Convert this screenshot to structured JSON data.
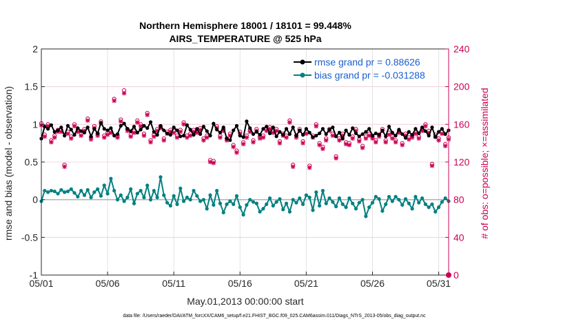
{
  "chart_data": {
    "type": "line",
    "title": [
      "Northern Hemisphere 18001 / 18101 = 99.448%",
      "AIRS_TEMPERATURE @ 525 hPa"
    ],
    "xlabel": "May.01,2013 00:00:00 start",
    "ylabel_left": "rmse and bias (model - observation)",
    "ylabel_right": "# of obs: o=possible; ×=assimilated",
    "footnote": "data file: /Users/raeder/DAI/ATM_forcXX/CAM6_setup/f.e21.FHIST_BGC.f09_025.CAM6assim.011/Diags_NTrS_2013-05/obs_diag_output.nc",
    "xlim": [
      1,
      31.75
    ],
    "ylim_left": [
      -1,
      2
    ],
    "ylim_right": [
      0,
      240
    ],
    "x_ticks": [
      1,
      6,
      11,
      16,
      21,
      26,
      31
    ],
    "x_tick_labels": [
      "05/01",
      "05/06",
      "05/11",
      "05/16",
      "05/21",
      "05/26",
      "05/31"
    ],
    "y_ticks_left": [
      -1,
      -0.5,
      0,
      0.5,
      1,
      1.5,
      2
    ],
    "y_tick_labels_left": [
      "-1",
      "-0.5",
      "0",
      "0.5",
      "1",
      "1.5",
      "2"
    ],
    "y_ticks_right": [
      0,
      40,
      80,
      120,
      160,
      200,
      240
    ],
    "y_tick_labels_right": [
      "0",
      "40",
      "80",
      "120",
      "160",
      "200",
      "240"
    ],
    "grid": true,
    "legend_position": "top-right",
    "x_step": 0.25,
    "series": [
      {
        "name": "rmse grand pr = 0.88626",
        "color": "#000000",
        "axis": "left",
        "values": [
          0.81,
          0.97,
          0.94,
          0.99,
          0.9,
          0.92,
          0.96,
          0.85,
          0.98,
          0.93,
          0.86,
          0.95,
          0.91,
          0.89,
          0.96,
          0.84,
          0.94,
          0.88,
          1.02,
          0.94,
          0.92,
          0.95,
          0.85,
          0.87,
          0.98,
          1.01,
          0.94,
          0.91,
          0.97,
          0.89,
          0.93,
          0.98,
          0.95,
          1.03,
          0.9,
          0.86,
          0.98,
          0.92,
          0.88,
          0.86,
          0.96,
          0.92,
          0.84,
          0.85,
          0.99,
          0.93,
          0.86,
          0.94,
          0.87,
          0.97,
          0.91,
          0.85,
          1.01,
          0.93,
          0.89,
          0.96,
          0.81,
          0.79,
          0.92,
          0.98,
          0.85,
          0.83,
          1.04,
          0.95,
          0.87,
          0.9,
          0.86,
          0.94,
          0.97,
          0.88,
          0.96,
          0.84,
          0.9,
          0.86,
          0.94,
          0.87,
          0.96,
          0.85,
          0.92,
          0.86,
          0.94,
          0.89,
          0.83,
          0.85,
          0.88,
          0.94,
          0.87,
          0.93,
          0.96,
          0.84,
          0.89,
          0.81,
          0.92,
          0.86,
          0.95,
          0.88,
          0.84,
          0.87,
          0.9,
          0.94,
          0.85,
          0.88,
          0.86,
          0.92,
          0.84,
          0.97,
          0.89,
          0.85,
          0.93,
          0.87,
          0.82,
          0.9,
          0.86,
          0.94,
          0.88,
          0.96,
          0.91,
          0.85,
          0.96,
          0.83,
          0.9,
          0.94,
          0.87,
          0.92,
          0.85,
          0.98,
          0.9,
          0.96,
          0.87,
          0.95,
          0.82,
          0.89,
          0.86,
          0.93,
          0.9,
          0.88,
          0.97,
          0.99,
          0.91,
          0.94,
          0.97,
          0.9,
          0.93,
          0.88,
          0.98,
          0.94,
          0.87,
          0.9,
          0.85,
          0.86,
          0.88,
          0.91,
          0.85,
          0.87,
          0.85,
          0.92,
          0.87,
          0.9,
          0.84,
          0.92,
          0.88,
          0.94,
          0.84,
          0.95,
          0.82,
          0.91,
          0.86,
          0.95,
          0.87,
          0.94,
          0.89,
          0.9,
          0.94,
          0.89,
          0.91,
          0.93,
          0.89,
          0.94,
          0.91,
          0.94,
          0.92,
          0.87,
          0.92,
          0.89,
          0.94,
          0.88,
          0.93
        ]
      },
      {
        "name": "bias grand pr = -0.031288",
        "color": "#008080",
        "axis": "left",
        "values": [
          -0.02,
          0.12,
          0.1,
          0.12,
          0.11,
          0.08,
          0.13,
          0.1,
          0.11,
          0.14,
          0.09,
          0.04,
          0.12,
          0.06,
          0.13,
          0.03,
          0.1,
          0.14,
          0.05,
          0.19,
          0.08,
          0.28,
          0.12,
          0.0,
          0.06,
          -0.02,
          0.03,
          0.14,
          -0.05,
          0.08,
          0.12,
          0.03,
          0.19,
          0.0,
          0.12,
          0.03,
          0.3,
          0.06,
          -0.04,
          -0.08,
          0.05,
          -0.06,
          0.15,
          -0.02,
          0.03,
          0.0,
          0.12,
          0.05,
          -0.02,
          0.0,
          -0.12,
          0.06,
          -0.07,
          0.12,
          -0.05,
          -0.17,
          -0.06,
          -0.02,
          -0.06,
          0.05,
          -0.1,
          -0.2,
          -0.07,
          0.0,
          -0.03,
          -0.05,
          -0.16,
          -0.12,
          -0.06,
          0.02,
          -0.08,
          -0.03,
          0.01,
          -0.13,
          -0.05,
          -0.16,
          0.0,
          -0.04,
          0.02,
          -0.06,
          0.06,
          0.03,
          -0.14,
          0.1,
          -0.08,
          0.12,
          -0.05,
          0.02,
          -0.03,
          -0.09,
          0.02,
          -0.06,
          -0.1,
          0.02,
          -0.05,
          -0.12,
          -0.04,
          0.0,
          -0.22,
          -0.1,
          -0.04,
          0.04,
          0.01,
          -0.15,
          -0.06,
          0.04,
          -0.02,
          0.04,
          0.0,
          -0.07,
          0.01,
          -0.05,
          -0.12,
          0.04,
          -0.04,
          0.02,
          -0.06,
          -0.1,
          -0.06,
          -0.16,
          -0.1,
          -0.03,
          0.02,
          -0.02,
          -0.08,
          -0.05,
          -0.12,
          -0.12,
          0.03,
          -0.16,
          -0.06,
          -0.02,
          0.18,
          -0.06,
          0.03,
          -0.06,
          -0.16,
          0.1,
          -0.02,
          0.11,
          -0.07,
          0.03,
          -0.05,
          0.1,
          -0.04,
          0.05,
          -0.09,
          -0.16,
          0.05,
          -0.06,
          0.01,
          -0.08,
          -0.02,
          0.02,
          0.1,
          -0.08,
          0.02,
          -0.06,
          -0.16,
          -0.08,
          0.06,
          -0.05,
          0.02,
          -0.04,
          0.12,
          -0.07,
          -0.02,
          0.06,
          0.01,
          -0.04,
          -0.08,
          0.06,
          -0.18,
          0.0,
          -0.06,
          0.04,
          -0.07,
          0.01,
          -0.04,
          -0.04,
          -0.16,
          -0.09,
          -0.06,
          -0.09,
          -0.1,
          -0.04,
          -0.07,
          0.02,
          -0.12,
          -0.06,
          -0.15,
          -0.08,
          -0.22,
          -0.24,
          -0.1
        ]
      }
    ],
    "obs_counts": {
      "color": "#cc0055",
      "axis": "right",
      "possible": [
        161,
        149,
        160,
        143,
        148,
        154,
        154,
        117,
        152,
        147,
        160,
        154,
        150,
        155,
        166,
        146,
        158,
        150,
        163,
        148,
        151,
        153,
        187,
        148,
        165,
        196,
        155,
        149,
        153,
        164,
        160,
        150,
        172,
        143,
        149,
        155,
        158,
        145,
        152,
        154,
        153,
        148,
        154,
        162,
        148,
        150,
        154,
        153,
        156,
        145,
        148,
        122,
        121,
        158,
        148,
        155,
        145,
        150,
        138,
        132,
        152,
        141,
        148,
        154,
        143,
        155,
        147,
        148,
        155,
        157,
        153,
        155,
        142,
        150,
        148,
        164,
        117,
        148,
        155,
        142,
        152,
        116,
        148,
        160,
        140,
        136,
        145,
        155,
        150,
        126,
        145,
        150,
        141,
        140,
        147,
        155,
        144,
        137,
        147,
        150,
        147,
        143,
        149,
        155,
        143,
        151,
        147,
        143,
        153,
        140,
        150,
        146,
        148,
        152,
        147,
        155,
        160,
        153,
        118,
        149,
        145,
        152,
        139,
        146,
        148,
        141,
        155,
        152,
        148,
        157,
        148,
        158,
        153,
        143,
        148,
        155,
        153,
        147,
        148,
        144,
        137,
        150,
        145,
        157,
        153,
        148,
        154,
        136,
        157,
        130,
        155,
        150,
        145,
        140,
        147,
        152,
        140,
        137,
        158,
        148,
        165,
        152,
        146,
        158,
        143,
        150,
        152,
        142,
        138,
        148,
        152,
        160,
        147,
        149,
        144,
        153,
        146,
        156,
        150,
        139,
        148,
        155,
        160,
        140,
        152,
        118,
        152,
        144,
        158,
        160,
        140,
        147,
        163,
        108
      ],
      "assimilated": [
        159,
        147,
        158,
        141,
        146,
        152,
        152,
        115,
        150,
        145,
        158,
        152,
        148,
        153,
        164,
        144,
        156,
        148,
        161,
        146,
        149,
        151,
        185,
        146,
        163,
        193,
        153,
        147,
        151,
        162,
        158,
        148,
        170,
        141,
        147,
        153,
        156,
        143,
        150,
        152,
        151,
        146,
        152,
        160,
        146,
        148,
        152,
        151,
        154,
        143,
        146,
        120,
        119,
        156,
        146,
        153,
        143,
        148,
        136,
        130,
        150,
        139,
        146,
        152,
        141,
        153,
        145,
        146,
        153,
        155,
        151,
        153,
        140,
        148,
        146,
        162,
        115,
        146,
        153,
        140,
        150,
        114,
        146,
        158,
        138,
        134,
        143,
        153,
        148,
        124,
        143,
        148,
        139,
        138,
        145,
        153,
        142,
        135,
        145,
        148,
        145,
        141,
        147,
        153,
        141,
        149,
        145,
        141,
        151,
        138,
        148,
        144,
        146,
        150,
        145,
        153,
        158,
        151,
        116,
        147,
        143,
        150,
        137,
        144,
        146,
        139,
        153,
        150,
        146,
        155,
        146,
        156,
        151,
        141,
        146,
        153,
        151,
        145,
        146,
        142,
        135,
        148,
        143,
        155,
        151,
        146,
        152,
        134,
        155,
        128,
        153,
        148,
        143,
        138,
        145,
        150,
        138,
        135,
        156,
        146,
        163,
        150,
        144,
        156,
        141,
        148,
        150,
        140,
        136,
        146,
        150,
        158,
        145,
        147,
        142,
        151,
        144,
        154,
        148,
        137,
        146,
        153,
        158,
        138,
        150,
        116,
        150,
        142,
        156,
        158,
        138,
        145,
        161,
        106
      ]
    }
  }
}
